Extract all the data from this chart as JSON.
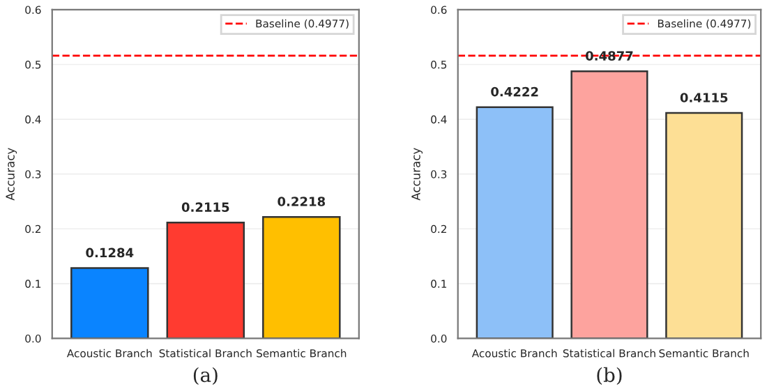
{
  "chart_data": [
    {
      "type": "bar",
      "xlabel": "(a)",
      "ylabel": "Accuracy",
      "categories": [
        "Acoustic Branch",
        "Statistical Branch",
        "Semantic Branch"
      ],
      "values": [
        0.1284,
        0.2115,
        0.2218
      ],
      "colors": [
        "#0a84ff",
        "#ff3b30",
        "#ffbf00"
      ],
      "ylim": [
        0,
        0.6
      ],
      "yticks": [
        {
          "value": 0,
          "label": "0.0"
        },
        0.1,
        0.2,
        0.3,
        0.4,
        0.5,
        0.6
      ],
      "grid": "y",
      "data_labels": true,
      "legend": "top right",
      "ref_lines": [
        {
          "axis": "y",
          "value": 0.516,
          "label": "Baseline (0.4977)",
          "color": "#ff0000",
          "line_style": "dashed"
        }
      ]
    },
    {
      "type": "bar",
      "xlabel": "(b)",
      "ylabel": "Accuracy",
      "categories": [
        "Acoustic Branch",
        "Statistical Branch",
        "Semantic Branch"
      ],
      "values": [
        0.4222,
        0.4877,
        0.4115
      ],
      "colors": [
        "#8dc0f8",
        "#fda39e",
        "#fddf95"
      ],
      "ylim": [
        0,
        0.6
      ],
      "yticks": [
        {
          "value": 0,
          "label": "0.0"
        },
        0.1,
        0.2,
        0.3,
        0.4,
        0.5,
        0.6
      ],
      "grid": "y",
      "data_labels": true,
      "legend": "top right",
      "ref_lines": [
        {
          "axis": "y",
          "value": 0.516,
          "label": "Baseline (0.4977)",
          "color": "#ff0000",
          "line_style": "dashed"
        }
      ]
    }
  ]
}
